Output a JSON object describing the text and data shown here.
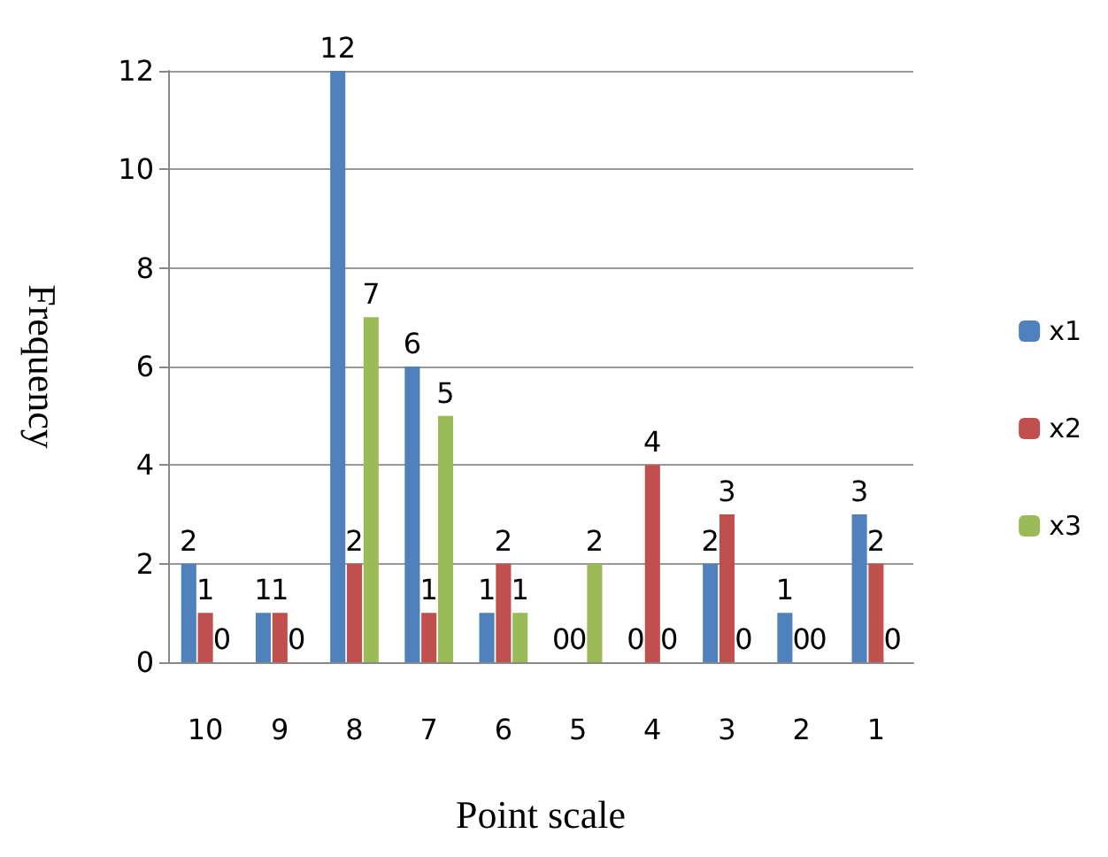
{
  "chart_data": {
    "type": "bar",
    "xlabel": "Point scale",
    "ylabel": "Frequency",
    "categories": [
      "10",
      "9",
      "8",
      "7",
      "6",
      "5",
      "4",
      "3",
      "2",
      "1"
    ],
    "series": [
      {
        "name": "x1",
        "color": "#4f81bd",
        "values": [
          2,
          1,
          12,
          6,
          1,
          0,
          0,
          2,
          1,
          3
        ]
      },
      {
        "name": "x2",
        "color": "#c0504d",
        "values": [
          1,
          1,
          2,
          1,
          2,
          0,
          4,
          3,
          0,
          2
        ]
      },
      {
        "name": "x3",
        "color": "#9bbb59",
        "values": [
          0,
          0,
          7,
          5,
          1,
          2,
          0,
          0,
          0,
          0
        ]
      }
    ],
    "ylim": [
      0,
      12
    ],
    "yticks": [
      0,
      2,
      4,
      6,
      8,
      10,
      12
    ],
    "grid": "y",
    "legend": "right",
    "data_labels": true
  }
}
